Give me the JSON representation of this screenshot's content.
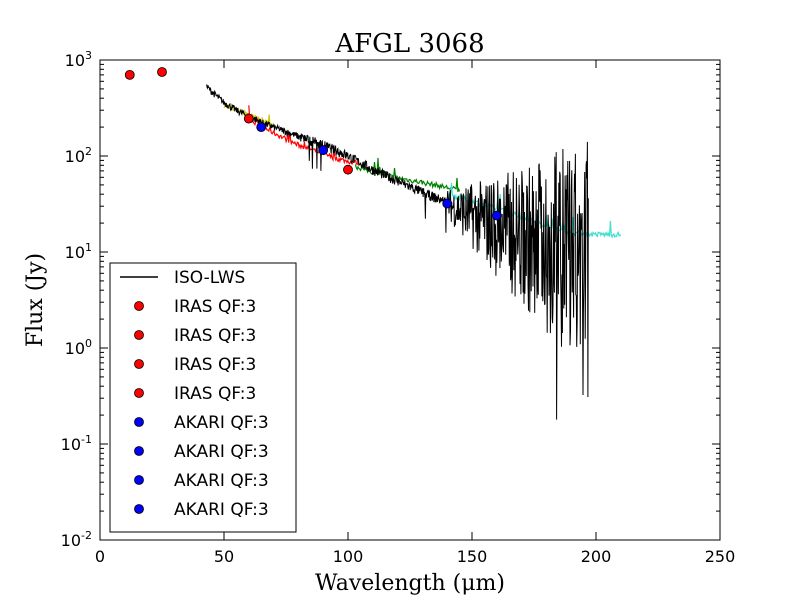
{
  "chart_data": {
    "type": "line",
    "title": "AFGL 3068",
    "xlabel": "Wavelength (μm)",
    "ylabel": "Flux (Jy)",
    "xlim": [
      0,
      250
    ],
    "ylim": [
      0.01,
      1000
    ],
    "yscale": "log",
    "x_ticks": [
      "0",
      "50",
      "100",
      "150",
      "200",
      "250"
    ],
    "y_ticks": [
      {
        "base": "10",
        "exp": "-2"
      },
      {
        "base": "10",
        "exp": "-1"
      },
      {
        "base": "10",
        "exp": "0"
      },
      {
        "base": "10",
        "exp": "1"
      },
      {
        "base": "10",
        "exp": "2"
      },
      {
        "base": "10",
        "exp": "3"
      }
    ],
    "legend": {
      "position": "lower-left",
      "entries": [
        {
          "label": "ISO-LWS",
          "kind": "line",
          "color": "#000000"
        },
        {
          "label": "IRAS QF:3",
          "kind": "marker",
          "color": "#ff0000"
        },
        {
          "label": "IRAS QF:3",
          "kind": "marker",
          "color": "#ff0000"
        },
        {
          "label": "IRAS QF:3",
          "kind": "marker",
          "color": "#ff0000"
        },
        {
          "label": "IRAS QF:3",
          "kind": "marker",
          "color": "#ff0000"
        },
        {
          "label": "AKARI QF:3",
          "kind": "marker",
          "color": "#0000ff"
        },
        {
          "label": "AKARI QF:3",
          "kind": "marker",
          "color": "#0000ff"
        },
        {
          "label": "AKARI QF:3",
          "kind": "marker",
          "color": "#0000ff"
        },
        {
          "label": "AKARI QF:3",
          "kind": "marker",
          "color": "#0000ff"
        }
      ]
    },
    "iras_points": [
      {
        "x": 12,
        "y": 700
      },
      {
        "x": 25,
        "y": 750
      },
      {
        "x": 60,
        "y": 245
      },
      {
        "x": 100,
        "y": 72
      }
    ],
    "akari_points": [
      {
        "x": 65,
        "y": 200
      },
      {
        "x": 90,
        "y": 115
      },
      {
        "x": 140,
        "y": 32
      },
      {
        "x": 160,
        "y": 24
      }
    ],
    "series": [
      {
        "name": "ISO-LWS",
        "color": "#000000",
        "x": [
          43,
          45,
          50,
          55,
          60,
          65,
          70,
          75,
          80,
          85,
          90,
          95,
          100,
          105,
          110,
          115,
          120,
          125,
          130,
          135,
          140,
          145,
          150,
          155,
          160,
          165,
          170,
          175,
          180,
          185,
          190,
          195,
          197
        ],
        "y": [
          530,
          470,
          360,
          300,
          260,
          225,
          200,
          180,
          160,
          145,
          130,
          115,
          100,
          85,
          72,
          63,
          55,
          48,
          42,
          37,
          33,
          29,
          26,
          23,
          21,
          19,
          17,
          16,
          15,
          14,
          13,
          12,
          11
        ],
        "noise_start": 140
      },
      {
        "name": "yellow segment",
        "color": "#c8c800",
        "x": [
          50,
          55,
          60,
          65,
          70
        ],
        "y": [
          340,
          300,
          270,
          235,
          210
        ]
      },
      {
        "name": "red segment",
        "color": "#ff0000",
        "x": [
          60,
          65,
          70,
          75,
          80,
          85,
          90,
          95,
          100,
          105
        ],
        "y": [
          245,
          205,
          175,
          150,
          130,
          118,
          105,
          95,
          88,
          85
        ]
      },
      {
        "name": "green segment",
        "color": "#008000",
        "x": [
          103,
          110,
          115,
          120,
          125,
          130,
          135,
          140,
          145
        ],
        "y": [
          78,
          68,
          63,
          59,
          56,
          53,
          50,
          47,
          44
        ]
      },
      {
        "name": "cyan segment",
        "color": "#40e0d0",
        "x": [
          140,
          145,
          150,
          155,
          160,
          165,
          170,
          175,
          180,
          185,
          190,
          195,
          200,
          205,
          210
        ],
        "y": [
          40,
          37,
          34,
          31,
          28,
          26,
          23,
          21,
          19,
          17,
          16,
          15.5,
          15.3,
          15.2,
          15.2
        ]
      }
    ]
  }
}
